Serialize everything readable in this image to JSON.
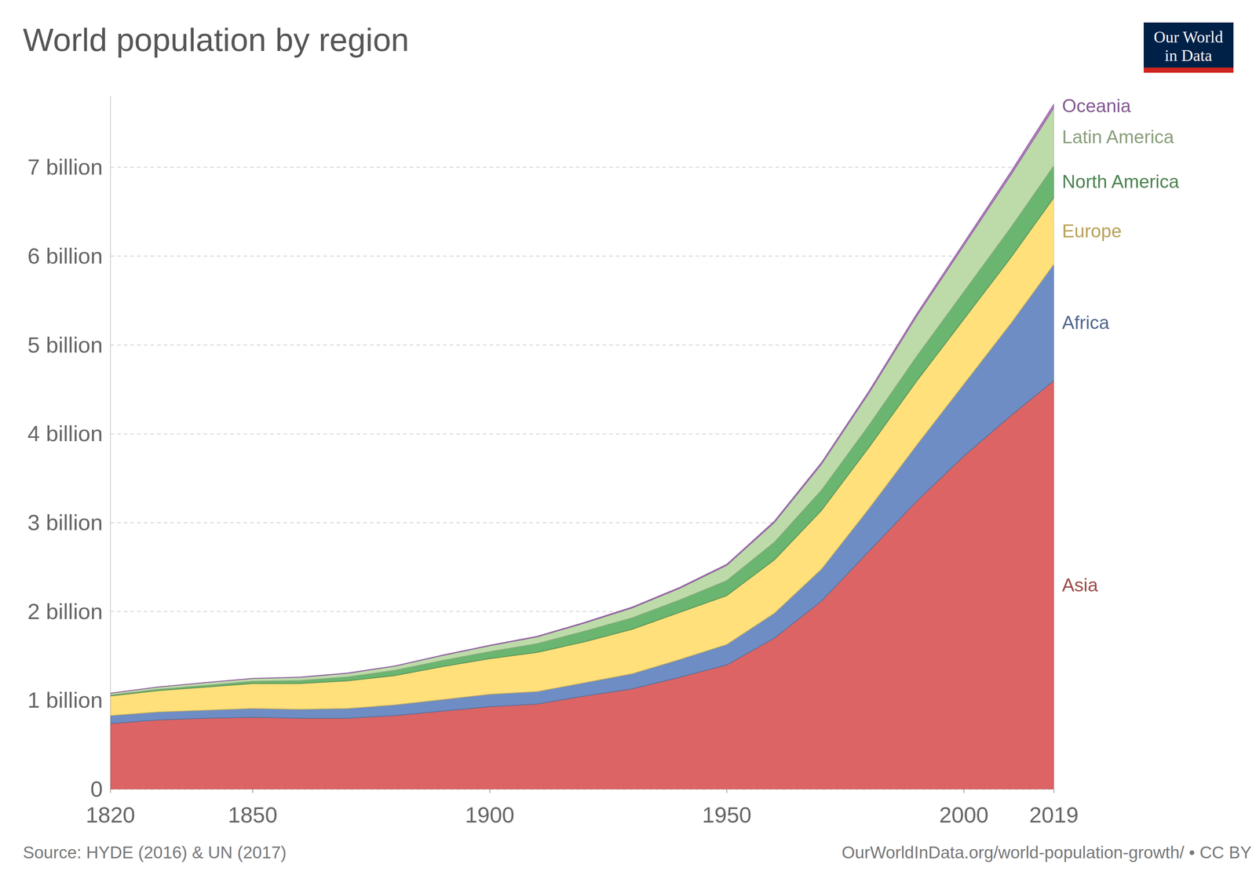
{
  "chart_data": {
    "type": "area",
    "stacked": true,
    "grid": true,
    "title": "World population by region",
    "source": "Source: HYDE (2016) & UN (2017)",
    "credit": "OurWorldInData.org/world-population-growth/ • CC BY",
    "logo": [
      "Our World",
      "in Data"
    ],
    "x": [
      1820,
      1830,
      1840,
      1850,
      1860,
      1870,
      1880,
      1890,
      1900,
      1910,
      1920,
      1930,
      1940,
      1950,
      1960,
      1970,
      1980,
      1990,
      2000,
      2010,
      2019
    ],
    "xlim": [
      1820,
      2019
    ],
    "xticks": [
      1820,
      1850,
      1900,
      1950,
      2000,
      2019
    ],
    "ylim": [
      0,
      7.8
    ],
    "yticks": [
      0,
      {
        "value": 1,
        "label": "1 billion"
      },
      {
        "value": 2,
        "label": "2 billion"
      },
      {
        "value": 3,
        "label": "3 billion"
      },
      {
        "value": 4,
        "label": "4 billion"
      },
      {
        "value": 5,
        "label": "5 billion"
      },
      {
        "value": 6,
        "label": "6 billion"
      },
      {
        "value": 7,
        "label": "7 billion"
      }
    ],
    "series": [
      {
        "name": "Asia",
        "color": "#dc6464",
        "values": [
          0.74,
          0.78,
          0.8,
          0.81,
          0.8,
          0.8,
          0.83,
          0.88,
          0.93,
          0.96,
          1.05,
          1.13,
          1.26,
          1.4,
          1.7,
          2.12,
          2.68,
          3.24,
          3.75,
          4.21,
          4.6
        ]
      },
      {
        "name": "Africa",
        "color": "#6e8dc4",
        "values": [
          0.09,
          0.09,
          0.09,
          0.1,
          0.1,
          0.11,
          0.12,
          0.13,
          0.14,
          0.14,
          0.15,
          0.17,
          0.2,
          0.23,
          0.28,
          0.36,
          0.48,
          0.63,
          0.81,
          1.04,
          1.31
        ]
      },
      {
        "name": "Europe",
        "color": "#ffe07a",
        "values": [
          0.22,
          0.24,
          0.26,
          0.28,
          0.29,
          0.31,
          0.33,
          0.37,
          0.4,
          0.44,
          0.46,
          0.5,
          0.53,
          0.55,
          0.6,
          0.66,
          0.69,
          0.72,
          0.73,
          0.74,
          0.75
        ]
      },
      {
        "name": "North America",
        "color": "#6ab56f",
        "values": [
          0.01,
          0.015,
          0.02,
          0.026,
          0.035,
          0.045,
          0.06,
          0.07,
          0.08,
          0.1,
          0.12,
          0.13,
          0.14,
          0.17,
          0.2,
          0.23,
          0.25,
          0.28,
          0.31,
          0.34,
          0.36
        ]
      },
      {
        "name": "Latin America",
        "color": "#bcdba9",
        "values": [
          0.02,
          0.025,
          0.03,
          0.03,
          0.035,
          0.04,
          0.045,
          0.055,
          0.065,
          0.075,
          0.09,
          0.11,
          0.13,
          0.17,
          0.22,
          0.29,
          0.36,
          0.45,
          0.52,
          0.59,
          0.65
        ]
      },
      {
        "name": "Oceania",
        "color": "#b77cc9",
        "values": [
          0.002,
          0.002,
          0.002,
          0.002,
          0.003,
          0.004,
          0.004,
          0.005,
          0.006,
          0.007,
          0.009,
          0.01,
          0.011,
          0.013,
          0.016,
          0.02,
          0.023,
          0.027,
          0.031,
          0.037,
          0.042
        ]
      }
    ]
  }
}
